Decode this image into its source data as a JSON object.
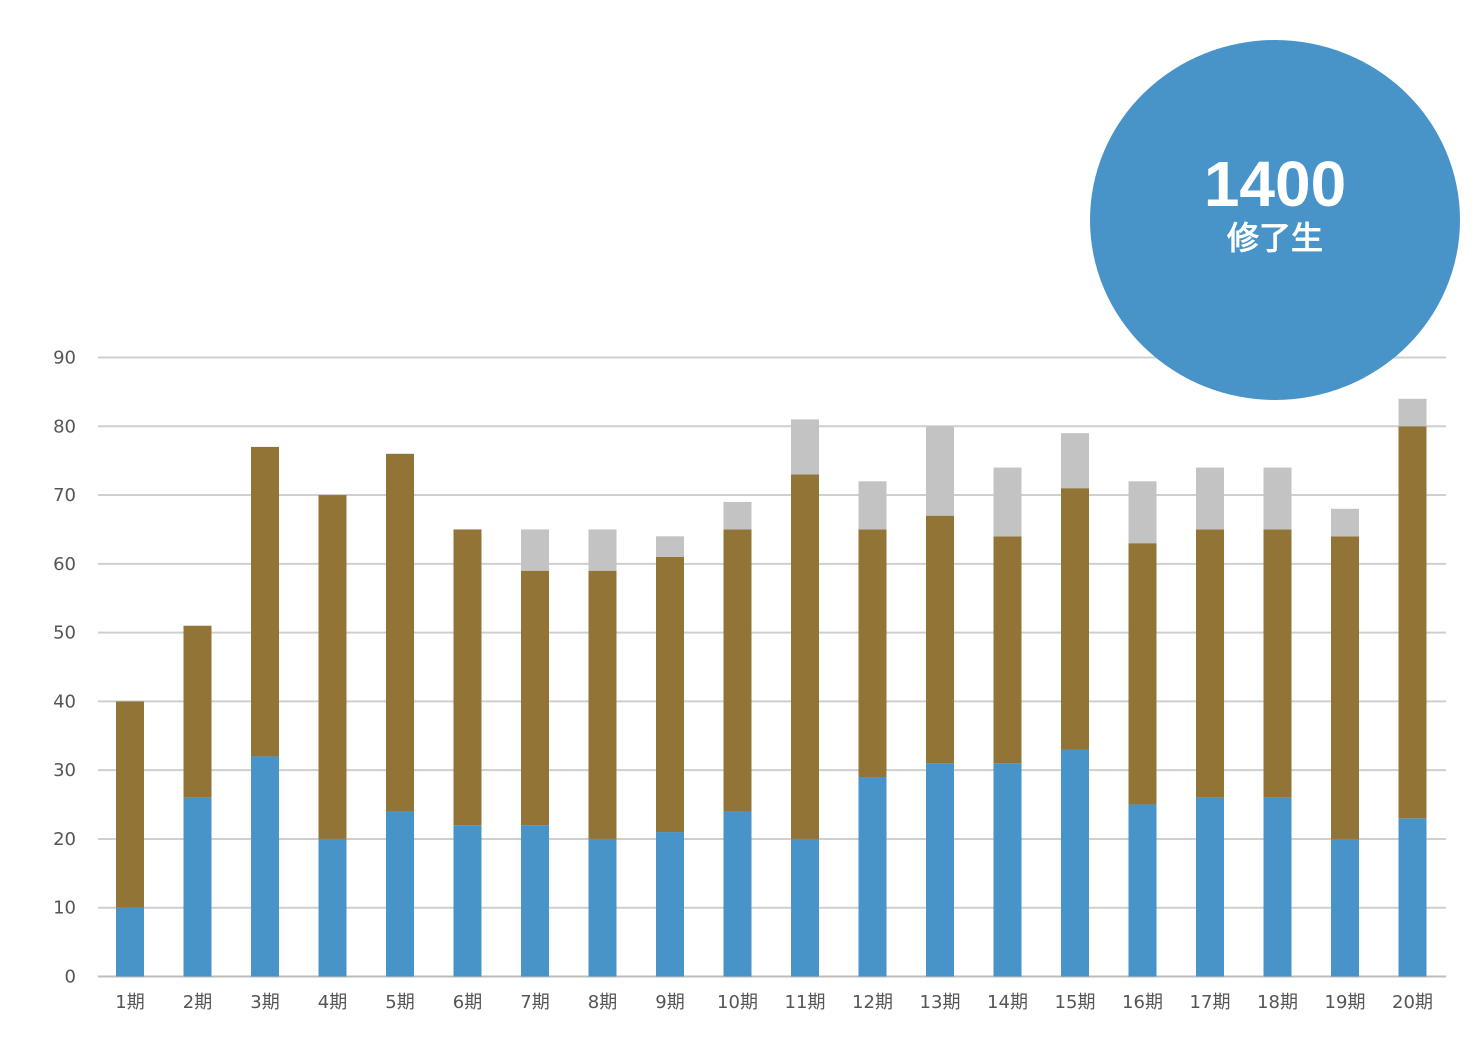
{
  "badge": {
    "number": "1400",
    "label": "修了生",
    "color": "#4893c8"
  },
  "chart_data": {
    "type": "bar",
    "stacked": true,
    "grid": true,
    "legend": "none",
    "ylim": [
      0,
      90
    ],
    "yticks": [
      0,
      10,
      20,
      30,
      40,
      50,
      60,
      70,
      80,
      90
    ],
    "categories": [
      "1期",
      "2期",
      "3期",
      "4期",
      "5期",
      "6期",
      "7期",
      "8期",
      "9期",
      "10期",
      "11期",
      "12期",
      "13期",
      "14期",
      "15期",
      "16期",
      "17期",
      "18期",
      "19期",
      "20期"
    ],
    "series": [
      {
        "color": "#4893c8",
        "values": [
          10,
          26,
          32,
          20,
          24,
          22,
          22,
          20,
          21,
          24,
          20,
          29,
          31,
          31,
          33,
          25,
          26,
          26,
          20,
          23
        ]
      },
      {
        "color": "#927536",
        "values": [
          30,
          25,
          45,
          50,
          52,
          43,
          37,
          39,
          40,
          41,
          53,
          36,
          36,
          33,
          38,
          38,
          39,
          39,
          44,
          57
        ]
      },
      {
        "color": "#c3c3c3",
        "values": [
          0,
          0,
          0,
          0,
          0,
          0,
          6,
          6,
          3,
          4,
          8,
          7,
          13,
          10,
          8,
          9,
          9,
          9,
          4,
          4
        ]
      }
    ]
  }
}
